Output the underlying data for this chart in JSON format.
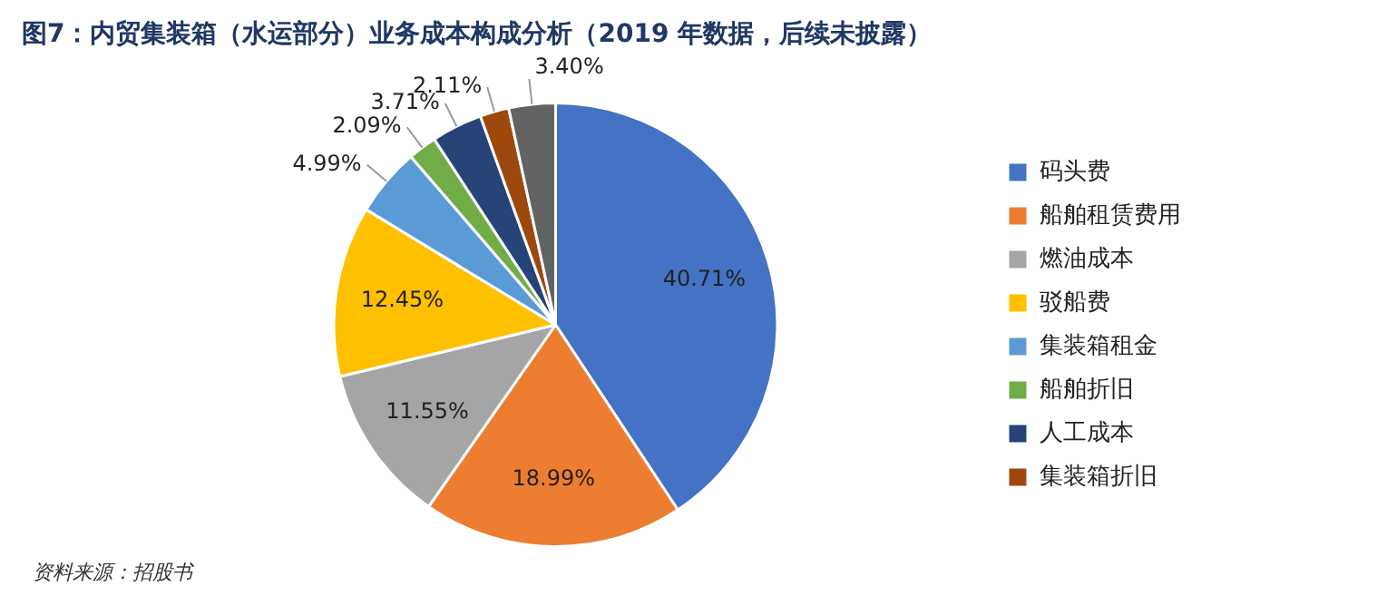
{
  "chart_data": {
    "type": "pie",
    "title": "图7：内贸集装箱（水运部分）业务成本构成分析（2019 年数据，后续未披露）",
    "categories": [
      "码头费",
      "船舶租赁费用",
      "燃油成本",
      "驳船费",
      "集装箱租金",
      "船舶折旧",
      "人工成本",
      "集装箱折旧",
      null
    ],
    "values": [
      40.71,
      18.99,
      11.55,
      12.45,
      4.99,
      2.09,
      3.71,
      2.11,
      3.4
    ],
    "colors": [
      "#4472c4",
      "#ed7d31",
      "#a5a5a5",
      "#ffc000",
      "#5b9bd5",
      "#70ad47",
      "#264478",
      "#9e480e",
      "#636363"
    ],
    "value_labels": [
      "40.71%",
      "18.99%",
      "11.55%",
      "12.45%",
      "4.99%",
      "2.09%",
      "3.71%",
      "2.11%",
      "3.40%"
    ],
    "legend": "right",
    "annotations": [
      "资料来源：招股书"
    ]
  }
}
